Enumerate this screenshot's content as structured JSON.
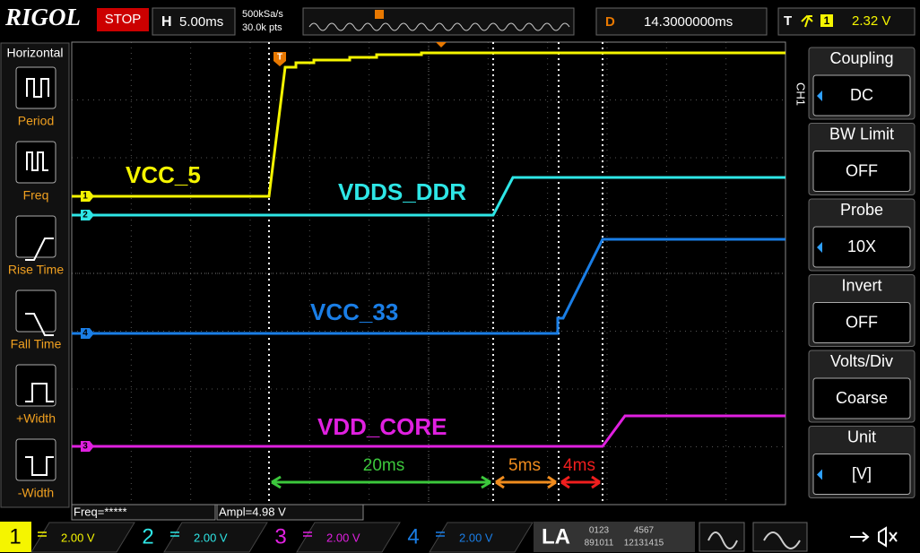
{
  "header": {
    "brand": "RIGOL",
    "status": "STOP",
    "timebase_label": "H",
    "timebase": "5.00ms",
    "sample_rate": "500kSa/s",
    "memory": "30.0k pts",
    "delay_label": "D",
    "delay": "14.3000000ms",
    "trigger_label": "T",
    "trigger_source": "1",
    "trigger_level": "2.32 V"
  },
  "left_menu": {
    "title": "Horizontal",
    "items": [
      "Period",
      "Freq",
      "Rise Time",
      "Fall Time",
      "+Width",
      "-Width"
    ]
  },
  "right_menu": {
    "channel": "CH1",
    "items": [
      {
        "label": "Coupling",
        "value": "DC"
      },
      {
        "label": "BW Limit",
        "value": "OFF"
      },
      {
        "label": "Probe",
        "value": "10X"
      },
      {
        "label": "Invert",
        "value": "OFF"
      },
      {
        "label": "Volts/Div",
        "value": "Coarse"
      },
      {
        "label": "Unit",
        "value": "[V]"
      }
    ]
  },
  "traces": [
    {
      "name": "VCC_5",
      "marker": "1"
    },
    {
      "name": "VDDS_DDR",
      "marker": "2"
    },
    {
      "name": "VCC_33",
      "marker": "4"
    },
    {
      "name": "VDD_CORE",
      "marker": "3"
    }
  ],
  "trigger_marker": "T",
  "intervals": [
    "20ms",
    "5ms",
    "4ms"
  ],
  "measurements": [
    "Freq=*****",
    "Ampl=4.98 V"
  ],
  "channels": [
    {
      "number": "1",
      "scale": "2.00 V"
    },
    {
      "number": "2",
      "scale": "2.00 V"
    },
    {
      "number": "3",
      "scale": "2.00 V"
    },
    {
      "number": "4",
      "scale": "2.00 V"
    }
  ],
  "logic": {
    "label": "LA",
    "bits": [
      "0123",
      "4567",
      "891011",
      "12131415"
    ]
  }
}
